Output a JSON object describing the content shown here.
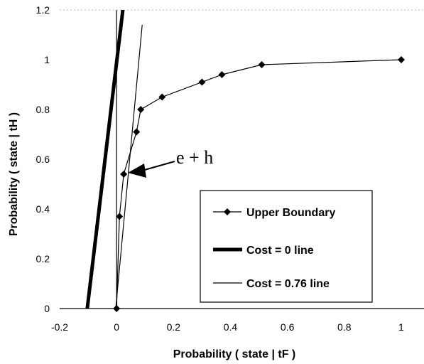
{
  "chart_data": {
    "type": "line",
    "title": "",
    "xlabel": "Probability ( state | tF )",
    "ylabel": "Probability ( state | tH )",
    "xlim": [
      -0.2,
      1.08
    ],
    "ylim": [
      0,
      1.2
    ],
    "x_ticks": [
      "-0.2",
      "0",
      "0.2",
      "0.4",
      "0.6",
      "0.8",
      "1"
    ],
    "y_ticks": [
      "0",
      "0.2",
      "0.4",
      "0.6",
      "0.8",
      "1",
      "1.2"
    ],
    "grid": false,
    "legend_position": "bottom-right",
    "series": [
      {
        "name": "Upper Boundary",
        "style": "line-diamond-markers",
        "x": [
          0,
          0.01,
          0.025,
          0.07,
          0.085,
          0.16,
          0.3,
          0.37,
          0.51,
          1.0
        ],
        "y": [
          0,
          0.37,
          0.54,
          0.71,
          0.8,
          0.85,
          0.91,
          0.94,
          0.98,
          1.0
        ]
      },
      {
        "name": "Cost = 0 line",
        "style": "thick-line",
        "x": [
          -0.103,
          0.022
        ],
        "y": [
          0,
          1.2
        ]
      },
      {
        "name": "Cost = 0.76 line",
        "style": "thin-line",
        "x": [
          -0.003,
          0.09
        ],
        "y": [
          0,
          1.14
        ]
      }
    ],
    "annotations": [
      {
        "text": "e + h",
        "x": 0.025,
        "y": 0.54
      }
    ]
  }
}
